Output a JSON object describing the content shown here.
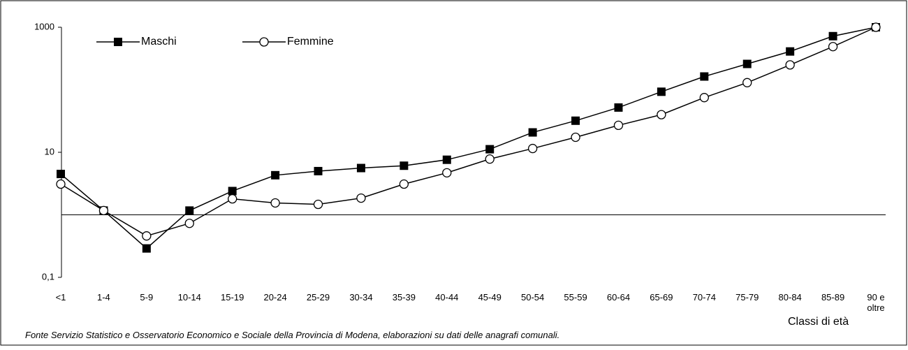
{
  "chart_data": {
    "type": "line",
    "log_scale": true,
    "xaxis_at": 1,
    "x_label": "Classi di età",
    "source": "Fonte Servizio Statistico e Osservatorio Economico e Sociale della Provincia di Modena, elaborazioni su dati delle anagrafi comunali.",
    "categories": [
      "<1",
      "1-4",
      "5-9",
      "10-14",
      "15-19",
      "20-24",
      "25-29",
      "30-34",
      "35-39",
      "40-44",
      "45-49",
      "50-54",
      "55-59",
      "60-64",
      "65-69",
      "70-74",
      "75-79",
      "80-84",
      "85-89",
      "90 e oltre"
    ],
    "series": [
      {
        "name": "Maschi",
        "color": "#000000",
        "marker": "square",
        "values": [
          4.5,
          1.17,
          0.29,
          1.17,
          2.4,
          4.3,
          5.0,
          5.6,
          6.1,
          7.6,
          11.2,
          20.8,
          32,
          52,
          93,
          163,
          259,
          410,
          720,
          1000
        ]
      },
      {
        "name": "Femmine",
        "color": "#000000",
        "marker": "circle",
        "values": [
          3.1,
          1.17,
          0.46,
          0.73,
          1.8,
          1.55,
          1.47,
          1.85,
          3.1,
          4.7,
          7.8,
          11.5,
          17.4,
          27,
          40,
          75,
          130,
          250,
          490,
          1000
        ]
      }
    ],
    "ylim": [
      0.1,
      1000
    ],
    "yticks": [
      {
        "value": 0.1,
        "label": "0,1"
      },
      10,
      1000
    ],
    "legend": "top-left"
  }
}
